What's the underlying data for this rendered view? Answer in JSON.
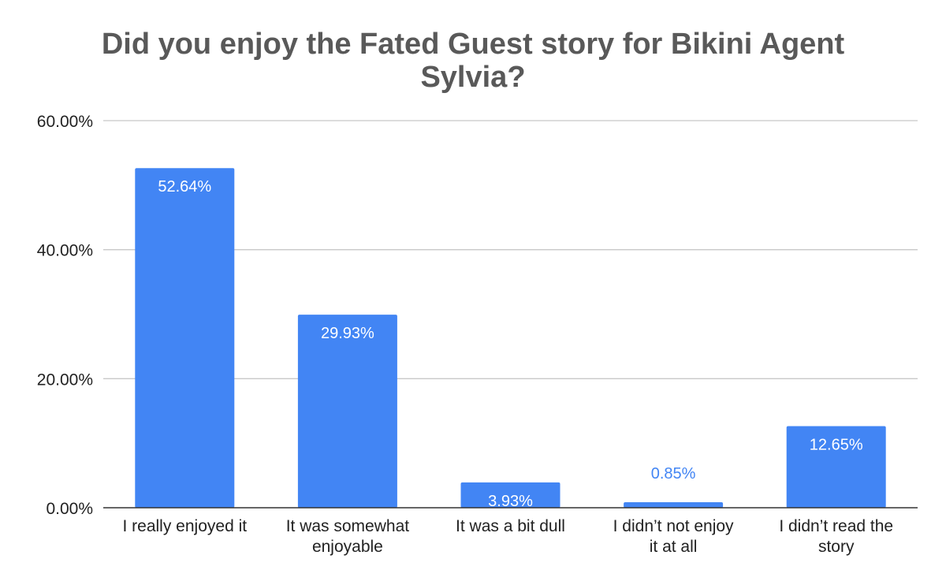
{
  "chart_data": {
    "type": "bar",
    "title_lines": [
      "Did you enjoy the Fated Guest story for Bikini Agent",
      "Sylvia?"
    ],
    "categories": [
      [
        "I really enjoyed it"
      ],
      [
        "It was somewhat",
        "enjoyable"
      ],
      [
        "It was a bit dull"
      ],
      [
        "I didn’t not enjoy",
        "it at all"
      ],
      [
        "I didn’t read the",
        "story"
      ]
    ],
    "values": [
      52.64,
      29.93,
      3.93,
      0.85,
      12.65
    ],
    "data_labels": [
      "52.64%",
      "29.93%",
      "3.93%",
      "0.85%",
      "12.65%"
    ],
    "ylim": [
      0,
      60
    ],
    "yticks": [
      0,
      20,
      40,
      60
    ],
    "ytick_labels": [
      "0.00%",
      "20.00%",
      "40.00%",
      "60.00%"
    ],
    "xlabel": "",
    "ylabel": "",
    "grid": true,
    "legend": "none",
    "colors": {
      "bar": "#4285f4",
      "grid": "#c8c8c8",
      "axis": "#333333",
      "title": "#595959",
      "label_inside": "#ffffff",
      "label_outside": "#4285f4"
    }
  }
}
